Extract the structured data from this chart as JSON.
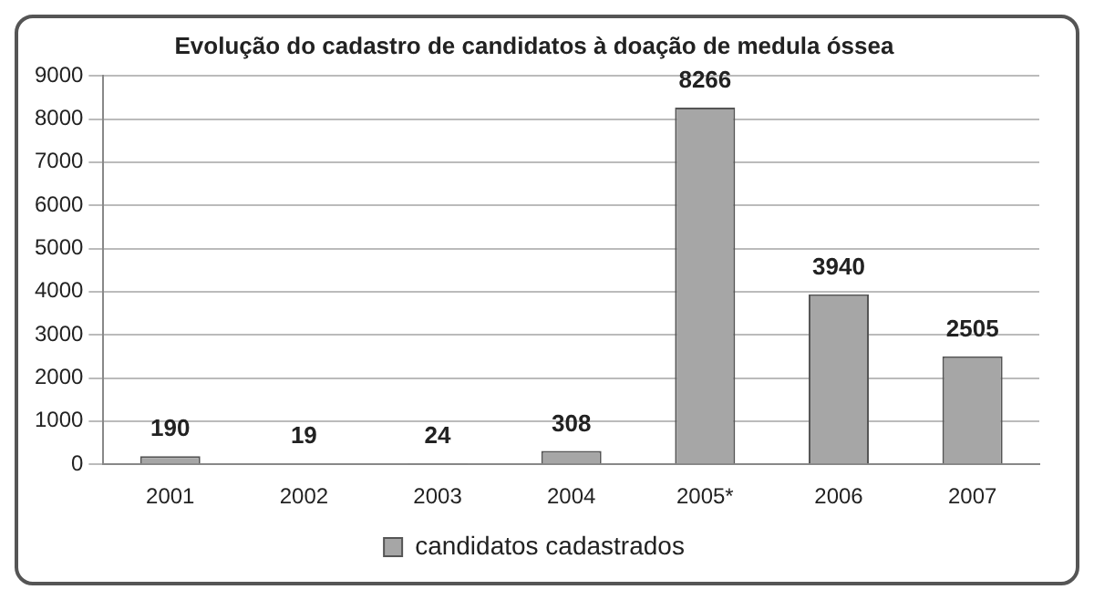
{
  "chart_data": {
    "type": "bar",
    "title": "Evolução do cadastro de candidatos à doação de medula óssea",
    "categories": [
      "2001",
      "2002",
      "2003",
      "2004",
      "2005*",
      "2006",
      "2007"
    ],
    "series": [
      {
        "name": "candidatos cadastrados",
        "color": "#a6a6a6",
        "values": [
          190,
          19,
          24,
          308,
          8266,
          3940,
          2505
        ]
      }
    ],
    "ylim": [
      0,
      9000
    ],
    "yticks": [
      0,
      1000,
      2000,
      3000,
      4000,
      5000,
      6000,
      7000,
      8000,
      9000
    ],
    "grid": "y",
    "legend": "bottom",
    "data_labels": true
  }
}
